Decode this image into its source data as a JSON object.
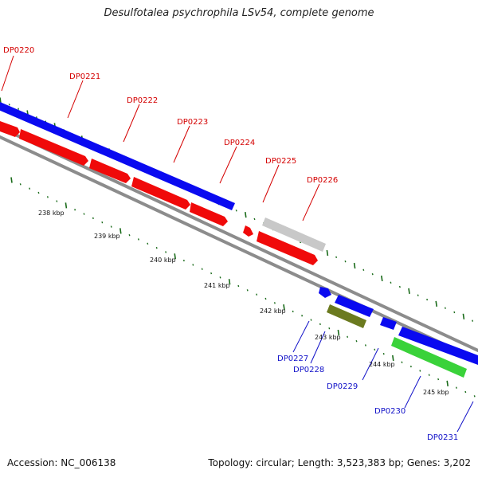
{
  "title": "Desulfotalea psychrophila LSv54, complete genome",
  "footer": {
    "accession": "Accession: NC_006138",
    "summary": "Topology: circular; Length: 3,523,383 bp; Genes: 3,202"
  },
  "colors": {
    "forward_cds": "#0a0af0",
    "reverse_cds": "#f00a0a",
    "grey_feature": "#c8c8c8",
    "olive_feature": "#6b7a1f",
    "green_feature": "#3ad23a",
    "backbone": "#8c8c8c",
    "tick": "#1a6b1a",
    "label_red": "#d40000",
    "label_blue": "#1010c8"
  },
  "top_labels": [
    "DP0220",
    "DP0221",
    "DP0222",
    "DP0223",
    "DP0224",
    "DP0225",
    "DP0226"
  ],
  "bottom_labels": [
    "DP0227",
    "DP0228",
    "DP0229",
    "DP0230",
    "DP0231"
  ],
  "kbp_labels": [
    "238 kbp",
    "239 kbp",
    "240 kbp",
    "241 kbp",
    "242 kbp",
    "243 kbp",
    "244 kbp",
    "245 kbp"
  ]
}
